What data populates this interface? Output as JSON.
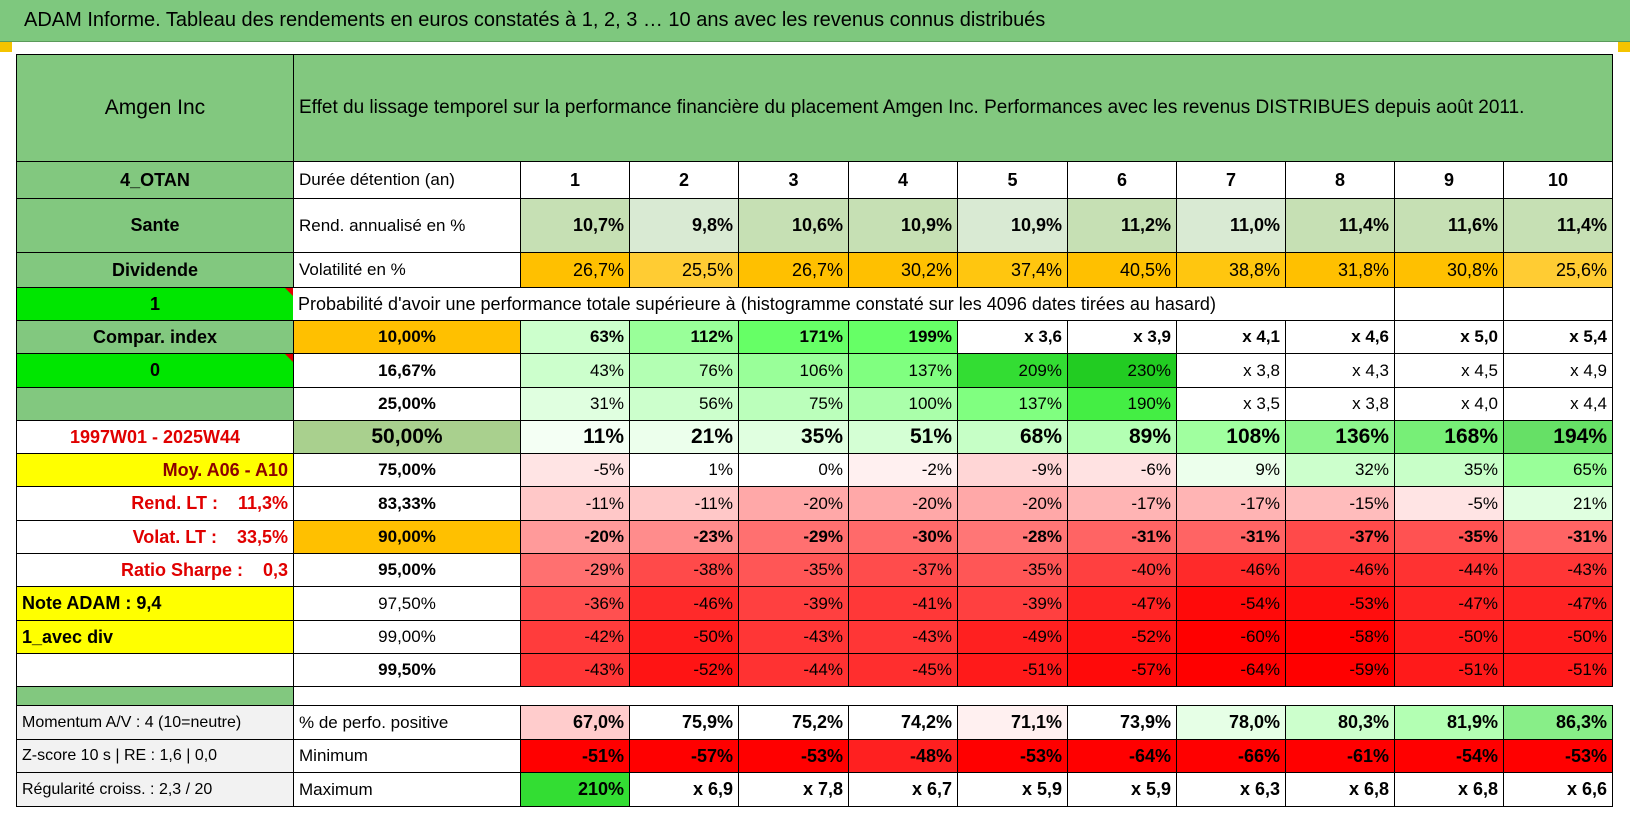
{
  "header": {
    "title": "ADAM Informe. Tableau des rendements en euros constatés à 1, 2, 3 … 10 ans avec les revenus connus distribués"
  },
  "table": {
    "name": "Amgen Inc",
    "description": "Effet du lissage temporel sur la performance financière du placement Amgen Inc. Performances avec les revenus DISTRIBUES depuis août 2011.",
    "rows": [
      {
        "label": "4_OTAN",
        "name": "Durée détention (an)",
        "values": [
          "1",
          "2",
          "3",
          "4",
          "5",
          "6",
          "7",
          "8",
          "9",
          "10"
        ]
      },
      {
        "label": "Sante",
        "name": "Rend. annualisé en %",
        "values": [
          "10,7%",
          "9,8%",
          "10,6%",
          "10,9%",
          "10,9%",
          "11,2%",
          "11,0%",
          "11,4%",
          "11,6%",
          "11,4%"
        ]
      },
      {
        "label": "Dividende",
        "name": "Volatilité en %",
        "values": [
          "26,7%",
          "25,5%",
          "26,7%",
          "30,2%",
          "37,4%",
          "40,5%",
          "38,8%",
          "31,8%",
          "30,8%",
          "25,6%"
        ]
      },
      {
        "label": "1",
        "name": "Probabilité d'avoir une performance totale supérieure à (histogramme constaté sur les 4096 dates tirées au hasard)"
      },
      {
        "label": "Compar. index",
        "name": "10,00%",
        "values": [
          "63%",
          "112%",
          "171%",
          "199%",
          "x 3,6",
          "x 3,9",
          "x 4,1",
          "x 4,6",
          "x 5,0",
          "x 5,4"
        ]
      },
      {
        "label": "0",
        "name": "16,67%",
        "values": [
          "43%",
          "76%",
          "106%",
          "137%",
          "209%",
          "230%",
          "x 3,8",
          "x 4,3",
          "x 4,5",
          "x 4,9"
        ]
      },
      {
        "label": null,
        "name": "25,00%",
        "values": [
          "31%",
          "56%",
          "75%",
          "100%",
          "137%",
          "190%",
          "x 3,5",
          "x 3,8",
          "x 4,0",
          "x 4,4"
        ]
      },
      {
        "label": "1997W01 - 2025W44",
        "name": "50,00%",
        "values": [
          "11%",
          "21%",
          "35%",
          "51%",
          "68%",
          "89%",
          "108%",
          "136%",
          "168%",
          "194%"
        ]
      },
      {
        "label": "Moy. A06 - A10",
        "name": "75,00%",
        "values": [
          "-5%",
          "1%",
          "0%",
          "-2%",
          "-9%",
          "-6%",
          "9%",
          "32%",
          "35%",
          "65%"
        ]
      },
      {
        "label": "Rend. LT :    11,3%",
        "name": "83,33%",
        "values": [
          "-11%",
          "-11%",
          "-20%",
          "-20%",
          "-20%",
          "-17%",
          "-17%",
          "-15%",
          "-5%",
          "21%"
        ]
      },
      {
        "label": "Volat. LT :    33,5%",
        "name": "90,00%",
        "values": [
          "-20%",
          "-23%",
          "-29%",
          "-30%",
          "-28%",
          "-31%",
          "-31%",
          "-37%",
          "-35%",
          "-31%"
        ]
      },
      {
        "label": "Ratio Sharpe :    0,3",
        "name": "95,00%",
        "values": [
          "-29%",
          "-38%",
          "-35%",
          "-37%",
          "-35%",
          "-40%",
          "-46%",
          "-46%",
          "-44%",
          "-43%"
        ]
      },
      {
        "label": "Note ADAM : 9,4",
        "name": "97,50%",
        "values": [
          "-36%",
          "-46%",
          "-39%",
          "-41%",
          "-39%",
          "-47%",
          "-54%",
          "-53%",
          "-47%",
          "-47%"
        ]
      },
      {
        "label": "1_avec div",
        "name": "99,00%",
        "values": [
          "-42%",
          "-50%",
          "-43%",
          "-43%",
          "-49%",
          "-52%",
          "-60%",
          "-58%",
          "-50%",
          "-50%"
        ]
      },
      {
        "label": null,
        "name": "99,50%",
        "values": [
          "-43%",
          "-52%",
          "-44%",
          "-45%",
          "-51%",
          "-57%",
          "-64%",
          "-59%",
          "-51%",
          "-51%"
        ]
      },
      {
        "label": "Momentum A/V : 4 (10=neutre)",
        "name": "% de perfo. positive",
        "values": [
          "67,0%",
          "75,9%",
          "75,2%",
          "74,2%",
          "71,1%",
          "73,9%",
          "78,0%",
          "80,3%",
          "81,9%",
          "86,3%"
        ]
      },
      {
        "label": "Z-score 10 s | RE : 1,6 | 0,0",
        "name": "Minimum",
        "values": [
          "-51%",
          "-57%",
          "-53%",
          "-48%",
          "-53%",
          "-64%",
          "-66%",
          "-61%",
          "-54%",
          "-53%"
        ]
      },
      {
        "label": "Régularité croiss. : 2,3 / 20",
        "name": "Maximum",
        "values": [
          "210%",
          "x 6,9",
          "x 7,8",
          "x 6,7",
          "x 5,9",
          "x 5,9",
          "x 6,3",
          "x 6,8",
          "x 6,8",
          "x 6,6"
        ]
      }
    ]
  }
}
